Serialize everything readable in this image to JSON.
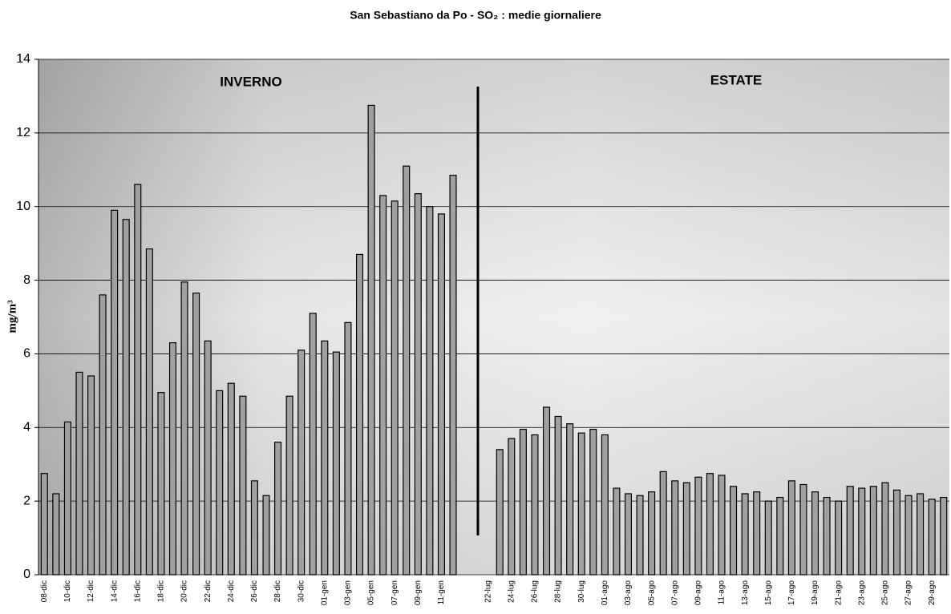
{
  "chart_data": {
    "type": "bar",
    "title": "San Sebastiano da Po - SO₂ : medie giornaliere",
    "y_label": "mg/m³",
    "annotations": [
      "INVERNO",
      "ESTATE"
    ],
    "categories": [
      "08-dic",
      null,
      "10-dic",
      null,
      "12-dic",
      null,
      "14-dic",
      null,
      "16-dic",
      null,
      "18-dic",
      null,
      "20-dic",
      null,
      "22-dic",
      null,
      "24-dic",
      null,
      "26-dic",
      null,
      "28-dic",
      null,
      "30-dic",
      null,
      "01-gen",
      null,
      "03-gen",
      null,
      "05-gen",
      null,
      "07-gen",
      null,
      "09-gen",
      null,
      "11-gen",
      null,
      null,
      null,
      "22-lug",
      null,
      "24-lug",
      null,
      "26-lug",
      null,
      "28-lug",
      null,
      "30-lug",
      null,
      "01-ago",
      null,
      "03-ago",
      null,
      "05-ago",
      null,
      "07-ago",
      null,
      "09-ago",
      null,
      "11-ago",
      null,
      "13-ago",
      null,
      "15-ago",
      null,
      "17-ago",
      null,
      "19-ago",
      null,
      "21-ago",
      null,
      "23-ago",
      null,
      "25-ago",
      null,
      "27-ago",
      null,
      "29-ago",
      null
    ],
    "values": [
      2.75,
      2.2,
      4.15,
      5.5,
      5.4,
      7.6,
      9.9,
      9.65,
      10.6,
      8.85,
      4.95,
      6.3,
      7.95,
      7.65,
      6.35,
      5.0,
      5.2,
      4.85,
      2.55,
      2.15,
      3.6,
      4.85,
      6.1,
      7.1,
      6.35,
      6.05,
      6.85,
      8.7,
      12.75,
      10.3,
      10.15,
      11.1,
      10.35,
      10.0,
      9.8,
      10.85,
      null,
      null,
      null,
      3.4,
      3.7,
      3.95,
      3.8,
      4.55,
      4.3,
      4.1,
      3.85,
      3.95,
      3.8,
      2.35,
      2.2,
      2.15,
      2.25,
      2.8,
      2.55,
      2.5,
      2.65,
      2.75,
      2.7,
      2.4,
      2.2,
      2.25,
      2.0,
      2.1,
      2.55,
      2.45,
      2.25,
      2.1,
      2.0,
      2.4,
      2.35,
      2.4,
      2.5,
      2.3,
      2.15,
      2.2,
      2.05,
      2.1
    ],
    "color": "#a0a0a0",
    "ylim": [
      0,
      14
    ],
    "yticks": [
      0,
      2,
      4,
      6,
      8,
      10,
      12,
      14
    ],
    "grid": true
  }
}
